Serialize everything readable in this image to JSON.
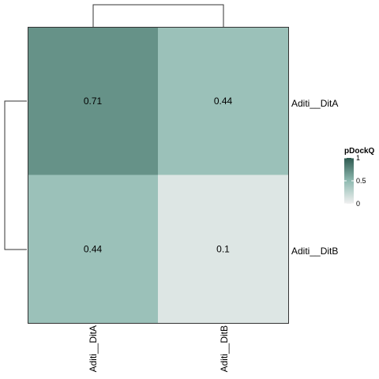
{
  "chart_data": {
    "type": "heatmap",
    "rows": [
      "Aditi__DitA",
      "Aditi__DitB"
    ],
    "columns": [
      "Aditi__DitA",
      "Aditi__DitB"
    ],
    "values": [
      [
        0.71,
        0.44
      ],
      [
        0.44,
        0.1
      ]
    ],
    "cell_labels": [
      [
        "0.71",
        "0.44"
      ],
      [
        "0.44",
        "0.1"
      ]
    ],
    "legend": {
      "title": "pDockQ",
      "ticks": [
        "1",
        "0.5",
        "0"
      ],
      "tick_values": [
        1,
        0.5,
        0
      ],
      "range": [
        0,
        1
      ],
      "placement": "right"
    },
    "color_scale": {
      "low": "#f1f1f1",
      "mid": "#8fbab1",
      "high": "#2e5a50",
      "mid_value": 0.5
    },
    "row_dendrogram": true,
    "column_dendrogram": true
  }
}
